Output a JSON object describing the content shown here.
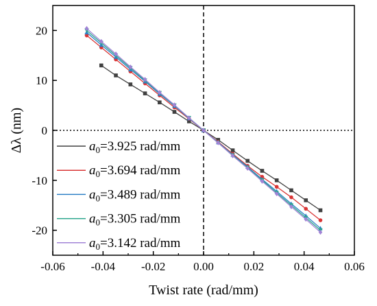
{
  "chart_data": {
    "type": "line",
    "xlabel": "Twist rate (rad/mm)",
    "ylabel": "Δλ (nm)",
    "xlim": [
      -0.06,
      0.06
    ],
    "ylim": [
      -25,
      25
    ],
    "x_ticks": [
      "-0.06",
      "-0.04",
      "-0.02",
      "0.00",
      "0.02",
      "0.04",
      "0.06"
    ],
    "y_ticks": [
      "-20",
      "-10",
      "0",
      "10",
      "20"
    ],
    "grid": false,
    "legend_position": "bottom-left",
    "reference_lines": [
      "x=0 dashed",
      "y=0 dotted"
    ],
    "series": [
      {
        "name_prefix": "a",
        "name_sub": "0",
        "name_value": "=3.925 rad/mm",
        "color": "#404040",
        "marker": "square",
        "x": [
          -0.0407,
          -0.0349,
          -0.0291,
          -0.0233,
          -0.0175,
          -0.0116,
          -0.0058,
          0.0,
          0.0058,
          0.0116,
          0.0175,
          0.0233,
          0.0291,
          0.0349,
          0.0407,
          0.0465
        ],
        "y": [
          13.0,
          11.0,
          9.2,
          7.4,
          5.6,
          3.7,
          1.8,
          0.0,
          -1.9,
          -4.0,
          -6.1,
          -8.1,
          -10.0,
          -12.0,
          -14.0,
          -16.0
        ]
      },
      {
        "name_prefix": "a",
        "name_sub": "0",
        "name_value": "=3.694 rad/mm",
        "color": "#d93535",
        "marker": "circle",
        "x": [
          -0.0465,
          -0.0407,
          -0.0349,
          -0.0291,
          -0.0233,
          -0.0175,
          -0.0116,
          -0.0058,
          0.0,
          0.0058,
          0.0116,
          0.0175,
          0.0233,
          0.0291,
          0.0349,
          0.0407,
          0.0465
        ],
        "y": [
          19.0,
          16.6,
          14.2,
          11.8,
          9.4,
          7.0,
          4.6,
          2.3,
          0.0,
          -2.3,
          -4.7,
          -7.1,
          -9.3,
          -11.3,
          -13.4,
          -15.7,
          -18.0
        ]
      },
      {
        "name_prefix": "a",
        "name_sub": "0",
        "name_value": "=3.489 rad/mm",
        "color": "#2c7fc5",
        "marker": "triangle-up",
        "x": [
          -0.0465,
          -0.0407,
          -0.0349,
          -0.0291,
          -0.0233,
          -0.0175,
          -0.0116,
          -0.0058,
          0.0,
          0.0058,
          0.0116,
          0.0175,
          0.0233,
          0.0291,
          0.0349,
          0.0407,
          0.0465
        ],
        "y": [
          19.6,
          17.1,
          14.7,
          12.2,
          9.8,
          7.3,
          4.9,
          2.4,
          0.0,
          -2.4,
          -4.9,
          -7.3,
          -9.8,
          -12.2,
          -14.7,
          -17.1,
          -19.6
        ]
      },
      {
        "name_prefix": "a",
        "name_sub": "0",
        "name_value": "=3.305 rad/mm",
        "color": "#2aa58c",
        "marker": "triangle-down",
        "x": [
          -0.0465,
          -0.0407,
          -0.0349,
          -0.0291,
          -0.0233,
          -0.0175,
          -0.0116,
          -0.0058,
          0.0,
          0.0058,
          0.0116,
          0.0175,
          0.0233,
          0.0291,
          0.0349,
          0.0407,
          0.0465
        ],
        "y": [
          20.0,
          17.5,
          15.0,
          12.5,
          10.0,
          7.5,
          5.0,
          2.5,
          0.0,
          -2.5,
          -5.0,
          -7.5,
          -10.0,
          -12.5,
          -15.0,
          -17.5,
          -20.0
        ]
      },
      {
        "name_prefix": "a",
        "name_sub": "0",
        "name_value": "=3.142 rad/mm",
        "color": "#a183d6",
        "marker": "diamond",
        "x": [
          -0.0465,
          -0.0407,
          -0.0349,
          -0.0291,
          -0.0233,
          -0.0175,
          -0.0116,
          -0.0058,
          0.0,
          0.0058,
          0.0116,
          0.0175,
          0.0233,
          0.0291,
          0.0349,
          0.0407,
          0.0465
        ],
        "y": [
          20.4,
          17.8,
          15.3,
          12.7,
          10.2,
          7.6,
          5.1,
          2.5,
          0.0,
          -2.5,
          -5.1,
          -7.6,
          -10.2,
          -12.7,
          -15.3,
          -17.8,
          -20.4
        ]
      }
    ]
  }
}
